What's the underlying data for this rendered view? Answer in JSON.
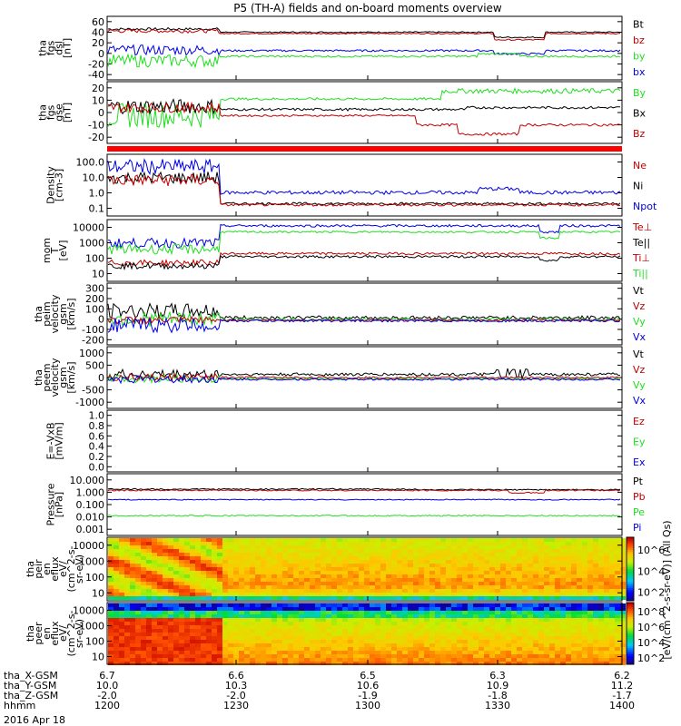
{
  "title": "P5 (TH-A) fields and on-board moments overview",
  "date_label": "2016 Apr 18",
  "colors": {
    "black": "#000000",
    "red": "#c00000",
    "green": "#22dd22",
    "blue": "#0000dd",
    "bar": "#ff0000"
  },
  "chart_data": [
    {
      "type": "line",
      "id": "fgs_dsl",
      "ylabel": [
        "tha",
        "fgs",
        "dsl",
        "[nT]"
      ],
      "yticks": [
        "60",
        "40",
        "20",
        "0",
        "-20",
        "-40"
      ],
      "ylim": [
        -40,
        60
      ],
      "legend": [
        {
          "name": "Bt",
          "color": "black"
        },
        {
          "name": "bz",
          "color": "red"
        },
        {
          "name": "by",
          "color": "green"
        },
        {
          "name": "bx",
          "color": "blue"
        }
      ]
    },
    {
      "type": "line",
      "id": "fgs_gse",
      "ylabel": [
        "tha",
        "fgs",
        "gse",
        "[nT]"
      ],
      "yticks": [
        "20",
        "10",
        "0",
        "-10",
        "-20"
      ],
      "ylim": [
        -25,
        20
      ],
      "legend": [
        {
          "name": "By",
          "color": "green"
        },
        {
          "name": "Bx",
          "color": "black"
        },
        {
          "name": "Bz",
          "color": "red"
        }
      ]
    },
    {
      "type": "line",
      "id": "density",
      "ylabel": [
        "Density",
        "[cm-3]"
      ],
      "yticks": [
        "100.0",
        "10.0",
        "1.0",
        "0.1"
      ],
      "log": true,
      "ylim": [
        0.1,
        100
      ],
      "legend": [
        {
          "name": "Ne",
          "color": "red"
        },
        {
          "name": "Ni",
          "color": "black"
        },
        {
          "name": "Npot",
          "color": "blue"
        }
      ]
    },
    {
      "type": "line",
      "id": "temp",
      "ylabel": [
        "mom",
        "T",
        "[eV]"
      ],
      "yticks": [
        "10000",
        "1000",
        "100",
        "10"
      ],
      "log": true,
      "ylim": [
        10,
        10000
      ],
      "legend": [
        {
          "name": "Te⊥",
          "color": "red"
        },
        {
          "name": "Te||",
          "color": "black"
        },
        {
          "name": "Ti⊥",
          "color": "red"
        },
        {
          "name": "Ti||",
          "color": "green"
        }
      ]
    },
    {
      "type": "line",
      "id": "peim_vel",
      "ylabel": [
        "tha",
        "peim",
        "velocity",
        "gsm",
        "[km/s]"
      ],
      "yticks": [
        "300",
        "200",
        "100",
        "0",
        "-100",
        "-200"
      ],
      "ylim": [
        -200,
        300
      ],
      "legend": [
        {
          "name": "Vt",
          "color": "black"
        },
        {
          "name": "Vz",
          "color": "red"
        },
        {
          "name": "Vy",
          "color": "green"
        },
        {
          "name": "Vx",
          "color": "blue"
        }
      ]
    },
    {
      "type": "line",
      "id": "peem_vel",
      "ylabel": [
        "tha",
        "peem",
        "velocity",
        "gsm",
        "[km/s]"
      ],
      "yticks": [
        "1000",
        "500",
        "0",
        "-500",
        "-1000"
      ],
      "ylim": [
        -1000,
        1000
      ],
      "legend": [
        {
          "name": "Vt",
          "color": "black"
        },
        {
          "name": "Vz",
          "color": "red"
        },
        {
          "name": "Vy",
          "color": "green"
        },
        {
          "name": "Vx",
          "color": "blue"
        }
      ]
    },
    {
      "type": "line",
      "id": "efield",
      "ylabel": [
        "E=-VxB",
        "[mV/m]"
      ],
      "yticks": [
        "1.0",
        "0.8",
        "0.6",
        "0.4",
        "0.2",
        "0.0"
      ],
      "ylim": [
        0,
        1
      ],
      "legend": [
        {
          "name": "Ez",
          "color": "red"
        },
        {
          "name": "Ey",
          "color": "green"
        },
        {
          "name": "Ex",
          "color": "blue"
        }
      ]
    },
    {
      "type": "line",
      "id": "pressure",
      "ylabel": [
        "Pressure",
        "[nPa]"
      ],
      "yticks": [
        "10.000",
        "1.000",
        "0.100",
        "0.010",
        "0.001"
      ],
      "log": true,
      "ylim": [
        0.001,
        10
      ],
      "legend": [
        {
          "name": "Pt",
          "color": "black"
        },
        {
          "name": "Pb",
          "color": "red"
        },
        {
          "name": "Pe",
          "color": "green"
        },
        {
          "name": "Pi",
          "color": "blue"
        }
      ]
    },
    {
      "type": "heatmap",
      "id": "peir_flux",
      "ylabel": [
        "tha",
        "peir",
        "en",
        "eflux",
        "eV/",
        "(cm^2-s-",
        "sr-eV)"
      ],
      "yticks": [
        "10000",
        "1000",
        "100",
        "10"
      ],
      "log": true,
      "ylim": [
        5,
        20000
      ],
      "colorbar_ticks": [
        "10^6",
        "10^4",
        "10^2"
      ]
    },
    {
      "type": "heatmap",
      "id": "peer_flux",
      "ylabel": [
        "tha",
        "peer",
        "en",
        "eflux",
        "eV/",
        "(cm^2-s-",
        "sr-eV)"
      ],
      "yticks": [
        "10000",
        "1000",
        "100",
        "10"
      ],
      "log": true,
      "ylim": [
        5,
        20000
      ],
      "colorbar_ticks": [
        "10^8",
        "10^6",
        "10^4",
        "10^2"
      ]
    }
  ],
  "colorbar_label": "[eV/(cm^2-s-sr-eV)] (All Qs)",
  "x_axis": {
    "row_labels": [
      "tha_X-GSM",
      "tha_Y-GSM",
      "tha_Z-GSM",
      "hhmm"
    ],
    "columns": [
      [
        "6.7",
        "10.0",
        "-2.0",
        "1200"
      ],
      [
        "6.6",
        "10.3",
        "-2.0",
        "1230"
      ],
      [
        "6.5",
        "10.6",
        "-1.9",
        "1300"
      ],
      [
        "6.3",
        "10.9",
        "-1.8",
        "1330"
      ],
      [
        "6.2",
        "11.2",
        "-1.7",
        "1400"
      ]
    ]
  }
}
